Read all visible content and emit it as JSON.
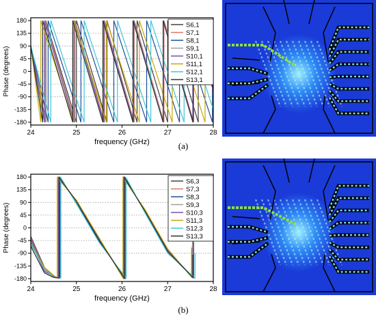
{
  "chart_data": [
    {
      "type": "line",
      "xlabel": "frequency (GHz)",
      "ylabel": "Phase (degrees)",
      "xlim": [
        24,
        28
      ],
      "ylim": [
        -190,
        190
      ],
      "x_ticks": [
        24,
        25,
        26,
        27,
        28
      ],
      "y_ticks": [
        -180,
        -135,
        -90,
        -45,
        0,
        45,
        90,
        135,
        180
      ],
      "grid": "dotted horizontal lines at -90, -45, 0, 45, 90, 135",
      "legend_position": "top-right",
      "series": [
        {
          "name": "S6,1",
          "color": "#404040",
          "x": [
            24.0,
            24.33,
            24.33,
            25.0,
            25.0,
            25.67,
            25.67,
            26.33,
            26.33,
            27.0,
            27.0,
            27.67,
            27.67,
            28.0
          ],
          "y": [
            90,
            -180,
            180,
            -180,
            180,
            -180,
            180,
            -180,
            180,
            -180,
            180,
            -180,
            180,
            0
          ]
        },
        {
          "name": "S7,1",
          "color": "#e0726a",
          "x": [
            24.0,
            24.32,
            24.32,
            24.97,
            24.97,
            25.62,
            25.62,
            26.27,
            26.27,
            26.92,
            26.92,
            27.57,
            27.57,
            28.0
          ],
          "y": [
            90,
            -180,
            180,
            -180,
            180,
            -180,
            180,
            -180,
            180,
            -180,
            180,
            -180,
            180,
            -60
          ]
        },
        {
          "name": "S8,1",
          "color": "#1f4e9c",
          "x": [
            24.0,
            24.38,
            24.38,
            25.1,
            25.1,
            25.82,
            25.82,
            26.54,
            26.54,
            27.26,
            27.26,
            27.98,
            27.98,
            28.0
          ],
          "y": [
            90,
            -180,
            180,
            -180,
            180,
            -180,
            180,
            -180,
            180,
            -180,
            180,
            -180,
            180,
            175
          ]
        },
        {
          "name": "S9,1",
          "color": "#a0a0a0",
          "x": [
            24.0,
            24.31,
            24.31,
            24.96,
            24.96,
            25.61,
            25.61,
            26.26,
            26.26,
            26.91,
            26.91,
            27.56,
            27.56,
            28.0
          ],
          "y": [
            90,
            -180,
            180,
            -180,
            180,
            -180,
            180,
            -180,
            180,
            -180,
            180,
            -180,
            180,
            -65
          ]
        },
        {
          "name": "S10,1",
          "color": "#7a4fa8",
          "x": [
            24.0,
            24.3,
            24.3,
            24.95,
            24.95,
            25.6,
            25.6,
            26.25,
            26.25,
            26.9,
            26.9,
            27.55,
            27.55,
            28.0
          ],
          "y": [
            90,
            -180,
            180,
            -180,
            180,
            -180,
            180,
            -180,
            180,
            -180,
            180,
            -180,
            180,
            -70
          ]
        },
        {
          "name": "S11,1",
          "color": "#c9a600",
          "x": [
            24.0,
            24.22,
            24.22,
            24.94,
            24.94,
            25.66,
            25.66,
            26.38,
            26.38,
            27.1,
            27.1,
            27.82,
            27.82,
            28.0
          ],
          "y": [
            90,
            -180,
            180,
            -180,
            180,
            -180,
            180,
            -180,
            180,
            -180,
            180,
            -180,
            180,
            90
          ]
        },
        {
          "name": "S12,1",
          "color": "#3cc7d6",
          "x": [
            24.0,
            24.44,
            24.44,
            25.17,
            25.17,
            25.9,
            25.9,
            26.63,
            26.63,
            27.36,
            27.36,
            28.0
          ],
          "y": [
            90,
            -180,
            180,
            -180,
            180,
            -180,
            180,
            -180,
            180,
            -180,
            180,
            -135
          ]
        },
        {
          "name": "S13,1",
          "color": "#303030",
          "x": [
            24.0,
            24.26,
            24.26,
            24.92,
            24.92,
            25.58,
            25.58,
            26.24,
            26.24,
            26.9,
            26.9,
            27.56,
            27.56,
            28.0
          ],
          "y": [
            90,
            -180,
            180,
            -180,
            180,
            -180,
            180,
            -180,
            180,
            -180,
            180,
            -180,
            180,
            -60
          ]
        }
      ]
    },
    {
      "type": "line",
      "xlabel": "frequency (GHz)",
      "ylabel": "Phase (degrees)",
      "xlim": [
        24,
        28
      ],
      "ylim": [
        -190,
        190
      ],
      "x_ticks": [
        24,
        25,
        26,
        27,
        28
      ],
      "y_ticks": [
        -180,
        -135,
        -90,
        -45,
        0,
        45,
        90,
        135,
        180
      ],
      "grid": "dotted horizontal lines at -90, -45, 0, 45, 90, 135",
      "legend_position": "top-right",
      "series": [
        {
          "name": "S6,3",
          "color": "#404040",
          "x": [
            24.0,
            24.3,
            24.5,
            24.62,
            24.62,
            25.0,
            25.5,
            26.05,
            26.05,
            26.5,
            27.0,
            27.55,
            27.55
          ],
          "y": [
            -30,
            -140,
            -170,
            -178,
            178,
            95,
            -40,
            -178,
            178,
            60,
            -80,
            -175,
            -30
          ]
        },
        {
          "name": "S7,3",
          "color": "#e0726a",
          "x": [
            24.0,
            24.3,
            24.5,
            24.63,
            24.63,
            25.0,
            25.5,
            26.06,
            26.06,
            26.5,
            27.0,
            27.56,
            27.56
          ],
          "y": [
            -35,
            -145,
            -172,
            -178,
            178,
            90,
            -45,
            -178,
            178,
            58,
            -85,
            -176,
            -40
          ]
        },
        {
          "name": "S8,3",
          "color": "#1f4e9c",
          "x": [
            24.0,
            24.3,
            24.5,
            24.64,
            24.64,
            25.0,
            25.5,
            26.07,
            26.07,
            26.5,
            27.0,
            27.57,
            27.57
          ],
          "y": [
            -40,
            -150,
            -174,
            -178,
            178,
            88,
            -48,
            -178,
            178,
            56,
            -88,
            -177,
            -50
          ]
        },
        {
          "name": "S9,3",
          "color": "#a0a0a0",
          "x": [
            24.0,
            24.3,
            24.5,
            24.61,
            24.61,
            25.0,
            25.5,
            26.04,
            26.04,
            26.5,
            27.0,
            27.54,
            27.54
          ],
          "y": [
            -45,
            -150,
            -170,
            -178,
            178,
            92,
            -42,
            -178,
            178,
            62,
            -78,
            -174,
            -60
          ]
        },
        {
          "name": "S10,3",
          "color": "#7a4fa8",
          "x": [
            24.0,
            24.3,
            24.5,
            24.6,
            24.6,
            25.0,
            25.5,
            26.03,
            26.03,
            26.5,
            27.0,
            27.53,
            27.53
          ],
          "y": [
            -50,
            -155,
            -172,
            -178,
            178,
            96,
            -38,
            -178,
            178,
            64,
            -76,
            -175,
            -70
          ]
        },
        {
          "name": "S11,3",
          "color": "#c9a600",
          "x": [
            24.0,
            24.3,
            24.5,
            24.58,
            24.58,
            25.0,
            25.5,
            26.02,
            26.02,
            26.5,
            27.0,
            27.52,
            27.52
          ],
          "y": [
            -60,
            -140,
            -168,
            -178,
            178,
            98,
            -35,
            -178,
            178,
            66,
            -74,
            -174,
            -80
          ]
        },
        {
          "name": "S12,3",
          "color": "#3cc7d6",
          "x": [
            24.0,
            24.3,
            24.5,
            24.66,
            24.66,
            25.0,
            25.5,
            26.09,
            26.09,
            26.5,
            27.0,
            27.6,
            27.6
          ],
          "y": [
            -55,
            -148,
            -175,
            -178,
            178,
            85,
            -52,
            -178,
            178,
            54,
            -90,
            -178,
            -90
          ]
        },
        {
          "name": "S13,3",
          "color": "#303030",
          "x": [
            24.0,
            24.3,
            24.5,
            24.62,
            24.62,
            25.0,
            25.5,
            26.05,
            26.05,
            26.5,
            27.0,
            27.55,
            27.55
          ],
          "y": [
            -65,
            -160,
            -176,
            -178,
            178,
            94,
            -44,
            -178,
            178,
            60,
            -82,
            -176,
            -95
          ]
        }
      ]
    }
  ],
  "captions": {
    "a": "(a)",
    "b": "(b)"
  },
  "simulation": {
    "background_color": "#1a3bd8",
    "border_color": "#000000",
    "port_dot_color": "#7fd8e6",
    "feed_color": "#8ee03a"
  }
}
